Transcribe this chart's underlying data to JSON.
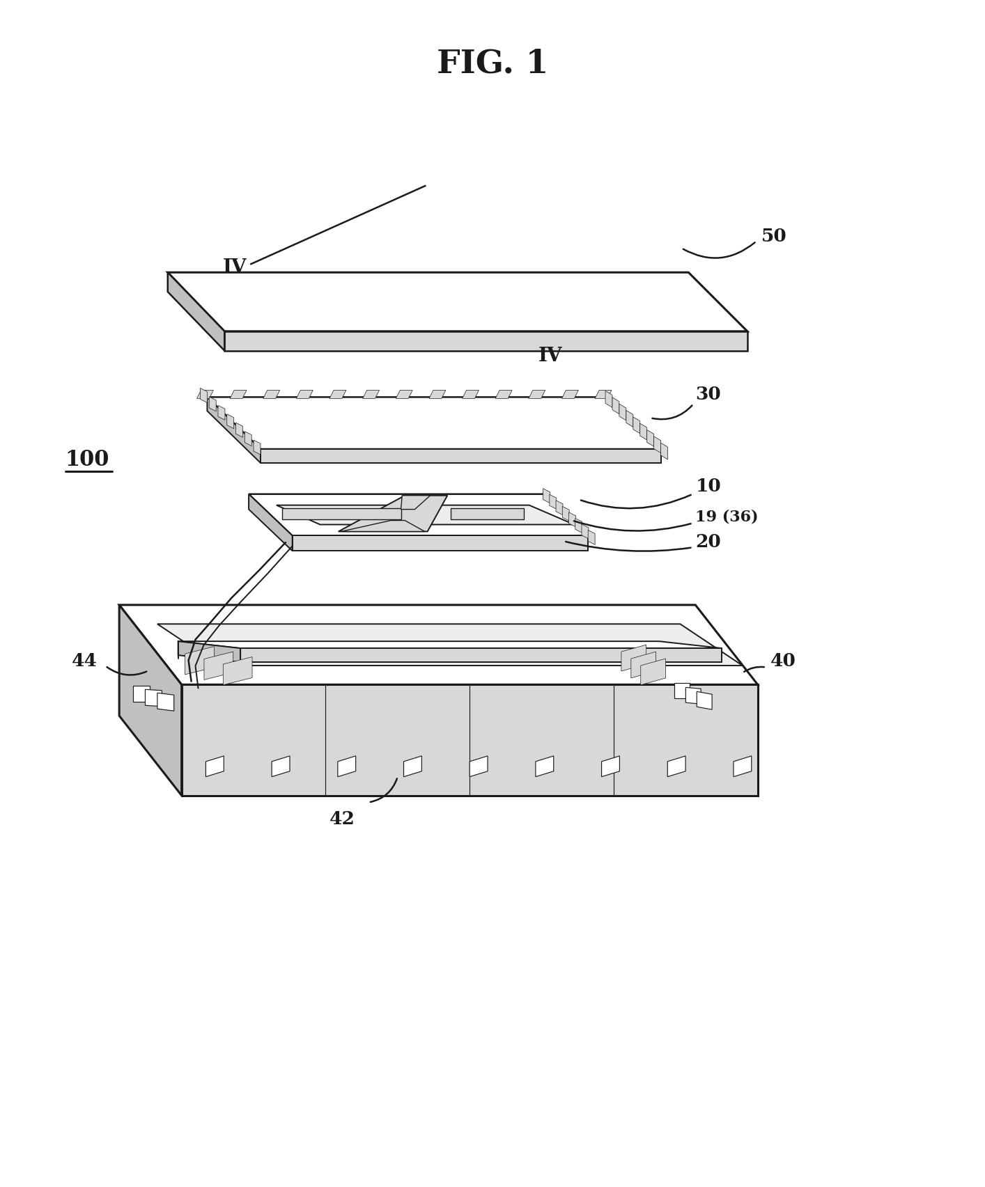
{
  "title": "FIG. 1",
  "bg": "#ffffff",
  "lc": "#1a1a1a",
  "white": "#ffffff",
  "lgray": "#eeeeee",
  "mgray": "#d8d8d8",
  "dgray": "#c0c0c0",
  "lw": 1.4,
  "lw2": 1.8,
  "lw3": 2.2,
  "fs": 19,
  "fs_title": 34
}
